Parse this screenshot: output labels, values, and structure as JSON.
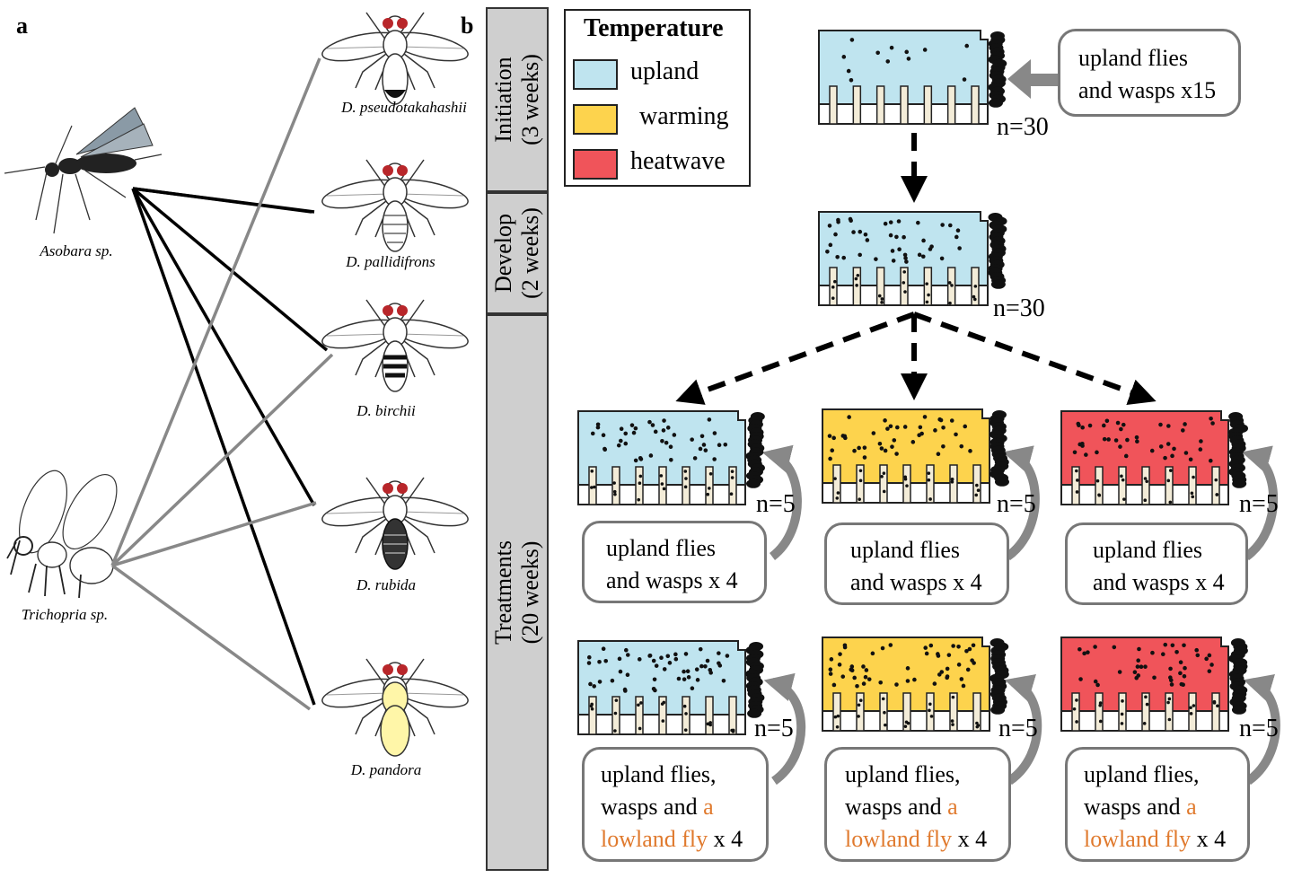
{
  "panels": {
    "a": "a",
    "b": "b"
  },
  "parasitoids": [
    "Asobara sp.",
    "Trichopria sp."
  ],
  "hosts": [
    "D. pseudotakahashii",
    "D. pallidifrons",
    "D. birchii",
    "D. rubida",
    "D. pandora"
  ],
  "phases": {
    "initiation": [
      "Initiation",
      "(3 weeks)"
    ],
    "develop": [
      "Develop",
      "(2 weeks)"
    ],
    "treatments": [
      "Treatments",
      "(20 weeks)"
    ]
  },
  "legend": {
    "title": "Temperature",
    "items": [
      {
        "label": "upland",
        "color": "#bfe4ef"
      },
      {
        "label": "warming",
        "color": "#fdd34d"
      },
      {
        "label": "heatwave",
        "color": "#f0545a"
      }
    ]
  },
  "init_box": [
    "upland flies",
    "and wasps x15"
  ],
  "n": {
    "big": "n=30",
    "small": "n=5"
  },
  "treat_box": [
    "upland flies",
    "and wasps x 4"
  ],
  "treat_box2": {
    "line1": "upland flies,",
    "line2a": "wasps and ",
    "line2b": "a",
    "line3a": "lowland fly",
    "line3b": " x 4"
  },
  "colors": {
    "accent": "#e07a2e",
    "arrow_gray": "#888888",
    "phase_bar": "#cfcfcf"
  }
}
